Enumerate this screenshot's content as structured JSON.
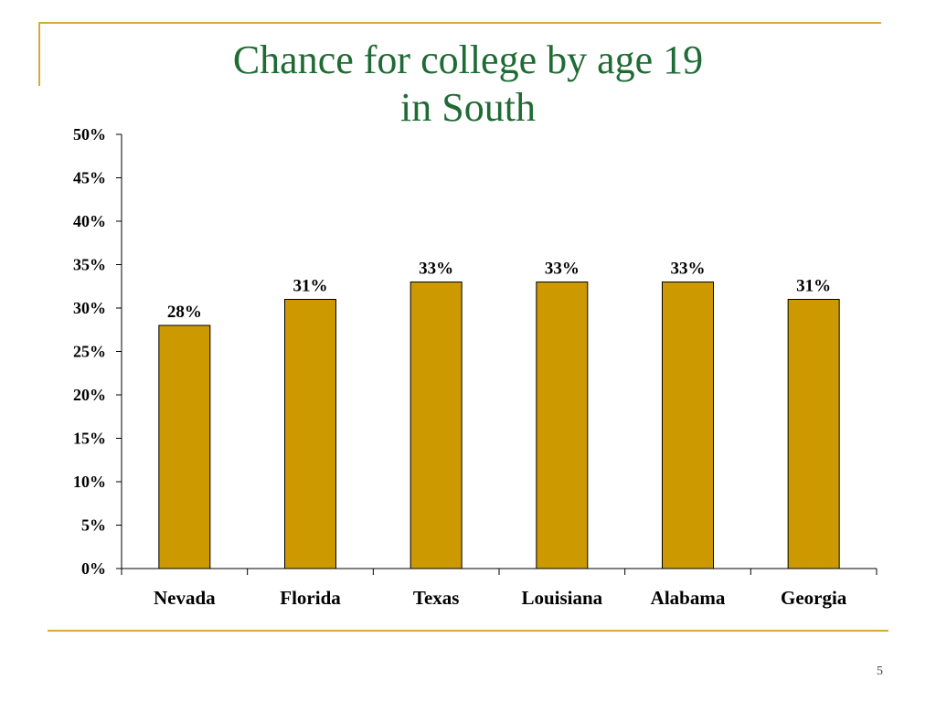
{
  "title": {
    "line1": "Chance for college by age 19",
    "line2": "in South"
  },
  "slide_number": "5",
  "colors": {
    "title": "#1e6b34",
    "bar_fill": "#cc9900",
    "bar_stroke": "#000000",
    "frame": "#d8a93a"
  },
  "chart_data": {
    "type": "bar",
    "title": "Chance for college by age 19 in South",
    "categories": [
      "Nevada",
      "Florida",
      "Texas",
      "Louisiana",
      "Alabama",
      "Georgia"
    ],
    "values": [
      28,
      31,
      33,
      33,
      33,
      31
    ],
    "value_labels": [
      "28%",
      "31%",
      "33%",
      "33%",
      "33%",
      "31%"
    ],
    "yticks": [
      "0%",
      "5%",
      "10%",
      "15%",
      "20%",
      "25%",
      "30%",
      "35%",
      "40%",
      "45%",
      "50%"
    ],
    "ylim": [
      0,
      50
    ],
    "xlabel": "",
    "ylabel": "",
    "grid": false,
    "legend": "none"
  }
}
